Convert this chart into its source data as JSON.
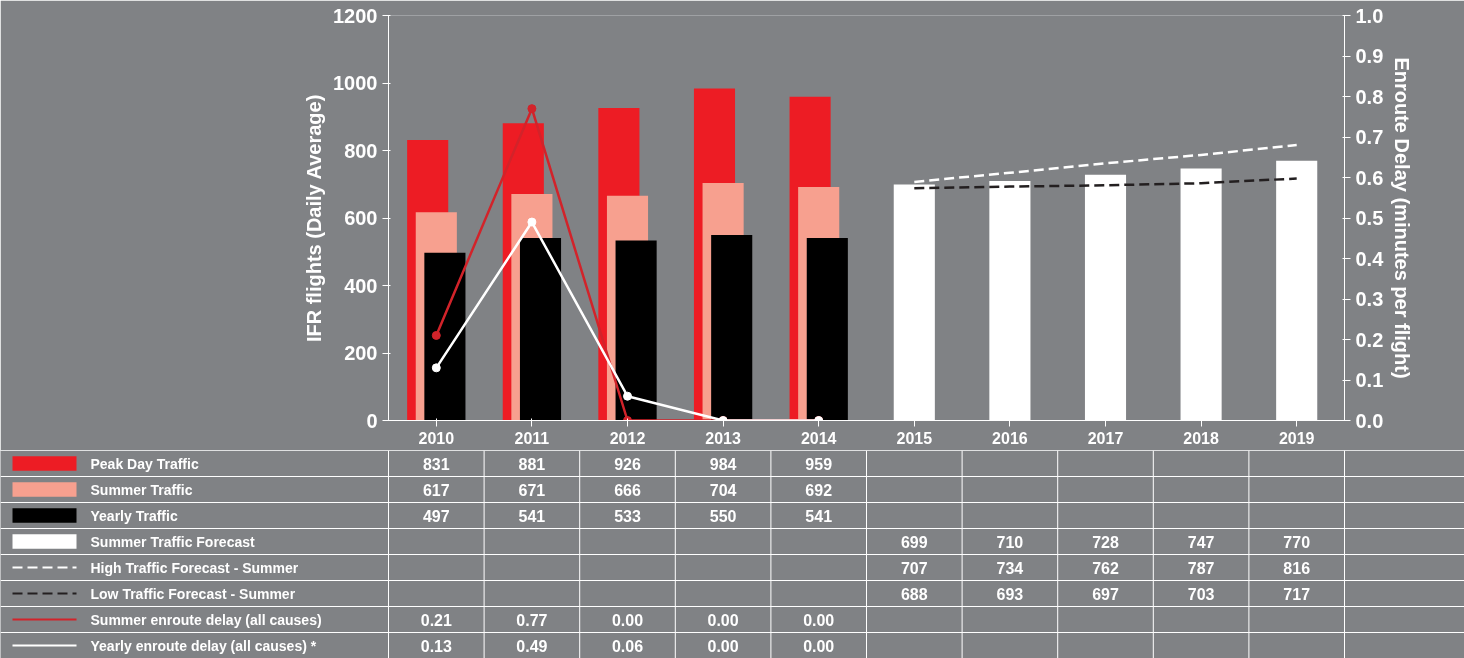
{
  "chart_data": {
    "type": "bar",
    "categories": [
      "2010",
      "2011",
      "2012",
      "2013",
      "2014",
      "2015",
      "2016",
      "2017",
      "2018",
      "2019"
    ],
    "ylabel": "IFR flights (Daily Average)",
    "y2label": "Enroute Delay (minutes per flight)",
    "ylim": [
      0,
      1200
    ],
    "yticks": [
      0,
      200,
      400,
      600,
      800,
      1000,
      1200
    ],
    "y2lim": [
      0,
      1
    ],
    "y2ticks": [
      {
        "value": 0,
        "label": "0.0"
      },
      0.1,
      0.2,
      0.3,
      0.4,
      0.5,
      0.6,
      0.7,
      0.8,
      0.9,
      {
        "value": 1,
        "label": "1.0"
      }
    ],
    "legend": "bottom",
    "data_labels": true,
    "series": [
      {
        "name": "Peak Day Traffic",
        "color": "#ed1c24",
        "values": [
          831,
          881,
          926,
          984,
          959,
          null,
          null,
          null,
          null,
          null
        ]
      },
      {
        "name": "Summer Traffic",
        "color": "#f7a08f",
        "values": [
          617,
          671,
          666,
          704,
          692,
          null,
          null,
          null,
          null,
          null
        ]
      },
      {
        "name": "Yearly Traffic",
        "color": "#000000",
        "values": [
          497,
          541,
          533,
          550,
          541,
          null,
          null,
          null,
          null,
          null
        ]
      },
      {
        "name": "Summer Traffic Forecast",
        "color": "#ffffff",
        "values": [
          null,
          null,
          null,
          null,
          null,
          699,
          710,
          728,
          747,
          770
        ]
      },
      {
        "name": "High Traffic Forecast - Summer",
        "type": "line",
        "line_style": "dashed",
        "color": "#ffffff",
        "values": [
          null,
          null,
          null,
          null,
          null,
          707,
          734,
          762,
          787,
          816
        ]
      },
      {
        "name": "Low Traffic Forecast - Summer",
        "type": "line",
        "line_style": "dashed",
        "color": "#231f20",
        "values": [
          null,
          null,
          null,
          null,
          null,
          688,
          693,
          697,
          703,
          717
        ]
      },
      {
        "name": "Summer enroute delay (all causes)",
        "type": "line",
        "axis": "y2",
        "marker": "circle",
        "color": "#d2232a",
        "values": [
          0.21,
          0.77,
          0.0,
          0.0,
          0.0,
          null,
          null,
          null,
          null,
          null
        ],
        "value_labels": [
          "0.21",
          "0.77",
          "0.00",
          "0.00",
          "0.00",
          null,
          null,
          null,
          null,
          null
        ]
      },
      {
        "name": "Yearly enroute delay (all causes) *",
        "type": "line",
        "axis": "y2",
        "marker": "circle",
        "color": "#ffffff",
        "values": [
          0.13,
          0.49,
          0.06,
          0.0,
          0.0,
          null,
          null,
          null,
          null,
          null
        ],
        "value_labels": [
          "0.13",
          "0.49",
          "0.06",
          "0.00",
          "0.00",
          null,
          null,
          null,
          null,
          null
        ]
      }
    ]
  }
}
